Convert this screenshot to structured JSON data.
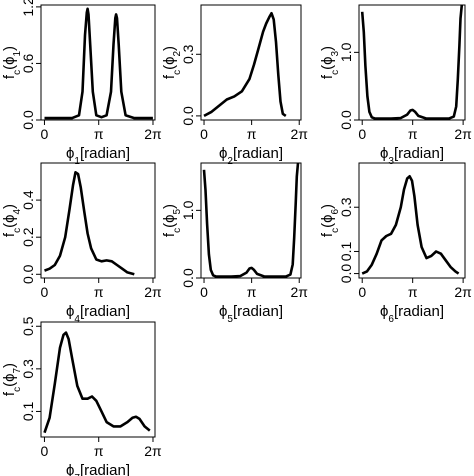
{
  "chart_data": [
    {
      "type": "line",
      "xlabel": "ϕ1[radian]",
      "ylabel": "fc(ϕ1)",
      "x_ticks": [
        "0",
        "π",
        "2π"
      ],
      "x_tick_values": [
        0,
        3.1416,
        6.2832
      ],
      "xlim": [
        -0.2,
        6.4
      ],
      "ylim": [
        0,
        1.22
      ],
      "y_ticks": [
        0.0,
        0.6,
        1.2
      ],
      "y_tick_labels": [
        "0.0",
        "0.6",
        "1.2"
      ],
      "series": [
        {
          "x": [
            0.0,
            1.0,
            1.6,
            2.0,
            2.2,
            2.35,
            2.45,
            2.5,
            2.55,
            2.65,
            2.8,
            3.0,
            3.3,
            3.6,
            3.85,
            4.0,
            4.1,
            4.15,
            4.2,
            4.3,
            4.45,
            4.7,
            5.2,
            6.28
          ],
          "y": [
            0.02,
            0.02,
            0.02,
            0.05,
            0.3,
            0.9,
            1.14,
            1.18,
            1.12,
            0.8,
            0.3,
            0.05,
            0.03,
            0.05,
            0.3,
            0.8,
            1.08,
            1.12,
            1.08,
            0.8,
            0.3,
            0.05,
            0.02,
            0.02
          ]
        }
      ]
    },
    {
      "type": "line",
      "xlabel": "ϕ2[radian]",
      "ylabel": "fc(ϕ2)",
      "x_ticks": [
        "0",
        "π",
        "2π"
      ],
      "x_tick_values": [
        0,
        3.1416,
        6.2832
      ],
      "xlim": [
        -0.2,
        6.4
      ],
      "ylim": [
        -0.02,
        0.54
      ],
      "y_ticks": [
        0.0,
        0.3
      ],
      "y_tick_labels": [
        "0.0",
        "0.3"
      ],
      "series": [
        {
          "x": [
            0.0,
            0.5,
            1.0,
            1.5,
            2.0,
            2.5,
            3.0,
            3.3,
            3.6,
            3.9,
            4.1,
            4.3,
            4.45,
            4.6,
            4.75,
            4.9,
            5.05,
            5.2,
            5.4
          ],
          "y": [
            0.0,
            0.02,
            0.05,
            0.08,
            0.095,
            0.12,
            0.18,
            0.25,
            0.33,
            0.41,
            0.45,
            0.48,
            0.5,
            0.47,
            0.36,
            0.2,
            0.07,
            0.01,
            0.0
          ]
        }
      ]
    },
    {
      "type": "line",
      "xlabel": "ϕ3[radian]",
      "ylabel": "fc(ϕ3)",
      "x_ticks": [
        "0",
        "π",
        "2π"
      ],
      "x_tick_values": [
        0,
        3.1416,
        6.2832
      ],
      "xlim": [
        -0.2,
        6.4
      ],
      "ylim": [
        0,
        1.7
      ],
      "y_ticks": [
        0.0,
        1.0
      ],
      "y_tick_labels": [
        "0.0",
        "1.0"
      ],
      "series": [
        {
          "x": [
            0.0,
            0.1,
            0.2,
            0.32,
            0.45,
            0.6,
            0.8,
            1.2,
            1.8,
            2.4,
            2.8,
            3.0,
            3.14,
            3.3,
            3.5,
            4.0,
            4.8,
            5.4,
            5.7,
            5.85,
            5.95,
            6.05,
            6.12,
            6.2
          ],
          "y": [
            1.6,
            1.3,
            0.8,
            0.35,
            0.12,
            0.04,
            0.02,
            0.02,
            0.02,
            0.03,
            0.08,
            0.14,
            0.15,
            0.12,
            0.06,
            0.02,
            0.02,
            0.02,
            0.05,
            0.2,
            0.6,
            1.1,
            1.5,
            1.7
          ]
        }
      ]
    },
    {
      "type": "line",
      "xlabel": "ϕ4[radian]",
      "ylabel": "fc(ϕ4)",
      "x_ticks": [
        "0",
        "π",
        "2π"
      ],
      "x_tick_values": [
        0,
        3.1416,
        6.2832
      ],
      "xlim": [
        -0.2,
        6.4
      ],
      "ylim": [
        -0.02,
        0.6
      ],
      "y_ticks": [
        0.0,
        0.2,
        0.4
      ],
      "y_tick_labels": [
        "0.0",
        "0.2",
        "0.4"
      ],
      "series": [
        {
          "x": [
            0.0,
            0.3,
            0.6,
            0.9,
            1.2,
            1.45,
            1.65,
            1.8,
            1.95,
            2.1,
            2.3,
            2.5,
            2.7,
            3.0,
            3.3,
            3.6,
            3.9,
            4.2,
            4.5,
            4.8,
            5.2
          ],
          "y": [
            0.02,
            0.03,
            0.05,
            0.1,
            0.2,
            0.35,
            0.48,
            0.55,
            0.54,
            0.47,
            0.34,
            0.22,
            0.14,
            0.08,
            0.07,
            0.075,
            0.07,
            0.05,
            0.03,
            0.01,
            0.0
          ]
        }
      ]
    },
    {
      "type": "line",
      "xlabel": "ϕ5[radian]",
      "ylabel": "fc(ϕ5)",
      "x_ticks": [
        "0",
        "π",
        "2π"
      ],
      "x_tick_values": [
        0,
        3.1416,
        6.2832
      ],
      "xlim": [
        -0.2,
        6.4
      ],
      "ylim": [
        0,
        1.7
      ],
      "y_ticks": [
        0.0,
        1.0
      ],
      "y_tick_labels": [
        "0.0",
        "1.0"
      ],
      "series": [
        {
          "x": [
            0.0,
            0.1,
            0.2,
            0.32,
            0.45,
            0.6,
            0.8,
            1.2,
            1.8,
            2.4,
            2.8,
            3.0,
            3.14,
            3.3,
            3.5,
            4.0,
            4.8,
            5.4,
            5.7,
            5.85,
            5.95,
            6.05,
            6.12,
            6.2
          ],
          "y": [
            1.6,
            1.3,
            0.8,
            0.35,
            0.12,
            0.04,
            0.02,
            0.02,
            0.02,
            0.03,
            0.08,
            0.14,
            0.15,
            0.12,
            0.06,
            0.02,
            0.02,
            0.02,
            0.05,
            0.2,
            0.6,
            1.1,
            1.5,
            1.7
          ]
        }
      ]
    },
    {
      "type": "line",
      "xlabel": "ϕ6[radian]",
      "ylabel": "fc(ϕ6)",
      "x_ticks": [
        "0",
        "π",
        "2π"
      ],
      "x_tick_values": [
        0,
        3.1416,
        6.2832
      ],
      "xlim": [
        -0.2,
        6.4
      ],
      "ylim": [
        -0.02,
        0.5
      ],
      "y_ticks": [
        0.0,
        0.1,
        0.3
      ],
      "y_tick_labels": [
        "0.0",
        "0.1",
        "0.3"
      ],
      "series": [
        {
          "x": [
            0.0,
            0.3,
            0.6,
            0.9,
            1.2,
            1.5,
            1.8,
            2.1,
            2.4,
            2.6,
            2.8,
            2.95,
            3.1,
            3.25,
            3.45,
            3.7,
            4.0,
            4.3,
            4.6,
            4.9,
            5.2,
            5.5,
            5.8,
            6.0
          ],
          "y": [
            0.0,
            0.01,
            0.04,
            0.09,
            0.15,
            0.17,
            0.18,
            0.22,
            0.3,
            0.38,
            0.43,
            0.44,
            0.42,
            0.35,
            0.22,
            0.12,
            0.07,
            0.08,
            0.1,
            0.09,
            0.06,
            0.03,
            0.01,
            0.0
          ]
        }
      ]
    },
    {
      "type": "line",
      "xlabel": "ϕ7[radian]",
      "ylabel": "fc(ϕ7)",
      "x_ticks": [
        "0",
        "π",
        "2π"
      ],
      "x_tick_values": [
        0,
        3.1416,
        6.2832
      ],
      "xlim": [
        -0.2,
        6.4
      ],
      "ylim": [
        -0.02,
        0.52
      ],
      "y_ticks": [
        0.1,
        0.3,
        0.5
      ],
      "y_tick_labels": [
        "0.1",
        "0.3",
        "0.5"
      ],
      "series": [
        {
          "x": [
            0.0,
            0.3,
            0.6,
            0.9,
            1.1,
            1.25,
            1.4,
            1.6,
            1.9,
            2.2,
            2.5,
            2.75,
            3.0,
            3.3,
            3.6,
            4.0,
            4.4,
            4.8,
            5.1,
            5.3,
            5.5,
            5.8,
            6.1
          ],
          "y": [
            0.0,
            0.07,
            0.23,
            0.4,
            0.46,
            0.47,
            0.44,
            0.35,
            0.22,
            0.16,
            0.16,
            0.17,
            0.15,
            0.1,
            0.05,
            0.03,
            0.03,
            0.05,
            0.07,
            0.075,
            0.065,
            0.03,
            0.01
          ]
        }
      ]
    }
  ]
}
